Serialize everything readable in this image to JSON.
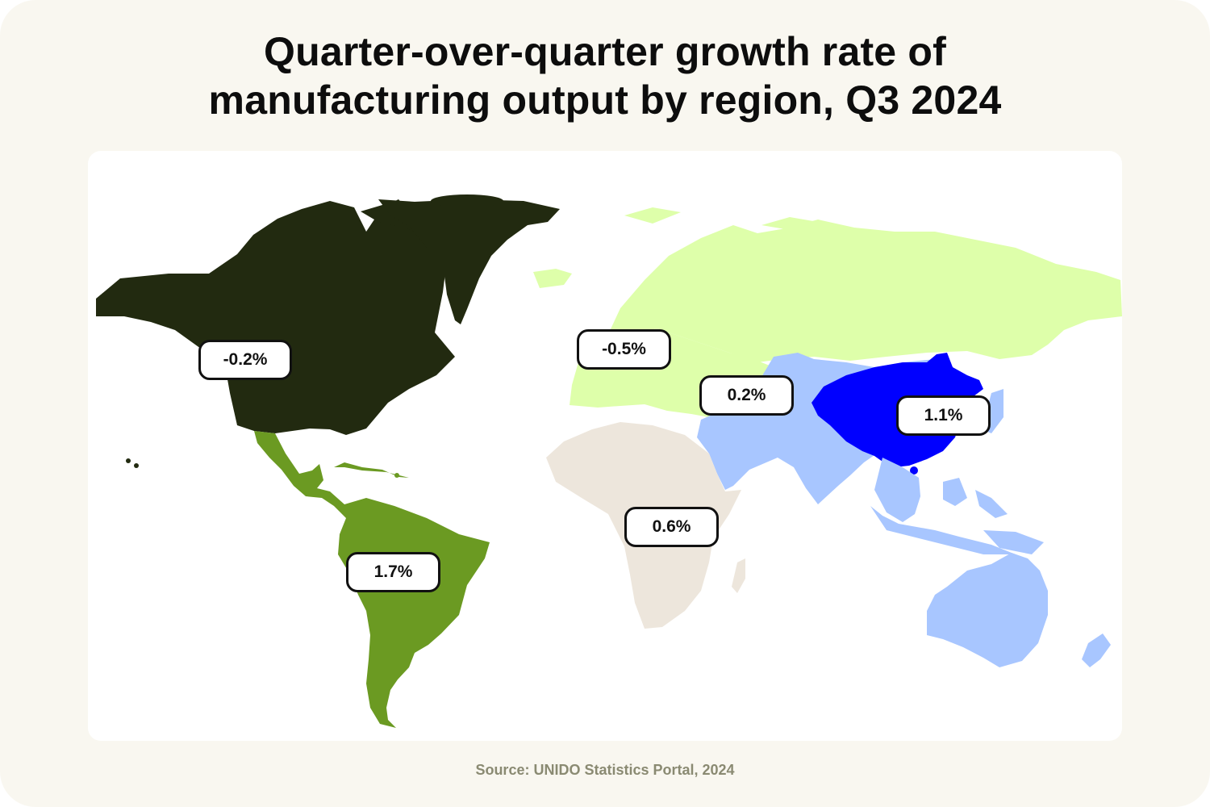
{
  "title": {
    "line1": "Quarter-over-quarter growth rate of",
    "line2": "manufacturing output by region, Q3 2024"
  },
  "source": "Source: UNIDO Statistics Portal, 2024",
  "regions": [
    {
      "id": "north-america",
      "value": "-0.2%",
      "color": "#222a10"
    },
    {
      "id": "europe-russia",
      "value": "-0.5%",
      "color": "#deffaa"
    },
    {
      "id": "middle-east-south-asia",
      "value": "0.2%",
      "color": "#a8c6ff"
    },
    {
      "id": "china",
      "value": "1.1%",
      "color": "#0000ff"
    },
    {
      "id": "africa",
      "value": "0.6%",
      "color": "#ede6dc"
    },
    {
      "id": "latin-america",
      "value": "1.7%",
      "color": "#6b9a22"
    },
    {
      "id": "oceania-southeast-asia",
      "color": "#a8c6ff"
    }
  ]
}
